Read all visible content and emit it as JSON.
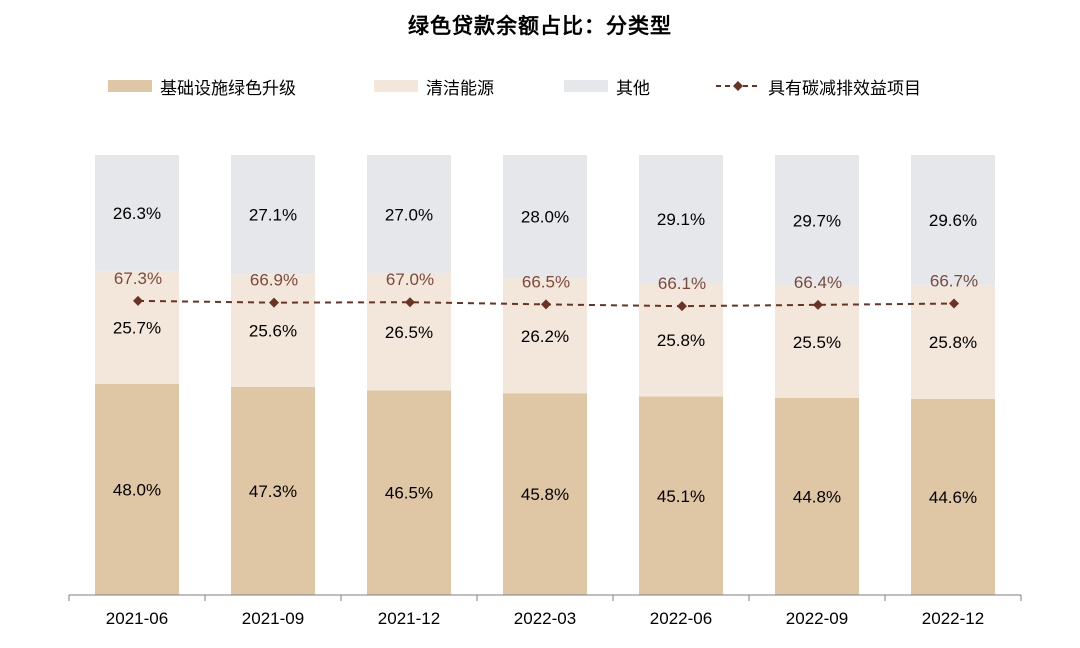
{
  "chart_data": {
    "type": "bar",
    "stacked": true,
    "title": "绿色贷款余额占比：分类型",
    "categories": [
      "2021-06",
      "2021-09",
      "2021-12",
      "2022-03",
      "2022-06",
      "2022-09",
      "2022-12"
    ],
    "series": [
      {
        "name": "基础设施绿色升级",
        "type": "bar",
        "color": "#dfc6a4",
        "values": [
          48.0,
          47.3,
          46.5,
          45.8,
          45.1,
          44.8,
          44.6
        ],
        "labels": [
          "48.0%",
          "47.3%",
          "46.5%",
          "45.8%",
          "45.1%",
          "44.8%",
          "44.6%"
        ]
      },
      {
        "name": "清洁能源",
        "type": "bar",
        "color": "#f2e7da",
        "values": [
          25.7,
          25.6,
          26.5,
          26.2,
          25.8,
          25.5,
          25.8
        ],
        "labels": [
          "25.7%",
          "25.6%",
          "26.5%",
          "26.2%",
          "25.8%",
          "25.5%",
          "25.8%"
        ]
      },
      {
        "name": "其他",
        "type": "bar",
        "color": "#e6e7eb",
        "values": [
          26.3,
          27.1,
          27.0,
          28.0,
          29.1,
          29.7,
          29.6
        ],
        "labels": [
          "26.3%",
          "27.1%",
          "27.0%",
          "28.0%",
          "29.1%",
          "29.7%",
          "29.6%"
        ]
      },
      {
        "name": "具有碳减排效益项目",
        "type": "line",
        "color": "#6b3323",
        "style": "dashed",
        "marker": "diamond",
        "values": [
          67.3,
          66.9,
          67.0,
          66.5,
          66.1,
          66.4,
          66.7
        ],
        "labels": [
          "67.3%",
          "66.9%",
          "67.0%",
          "66.5%",
          "66.1%",
          "66.4%",
          "66.7%"
        ]
      }
    ],
    "ylim": [
      0,
      100
    ],
    "grid": false,
    "legend_position": "top"
  }
}
